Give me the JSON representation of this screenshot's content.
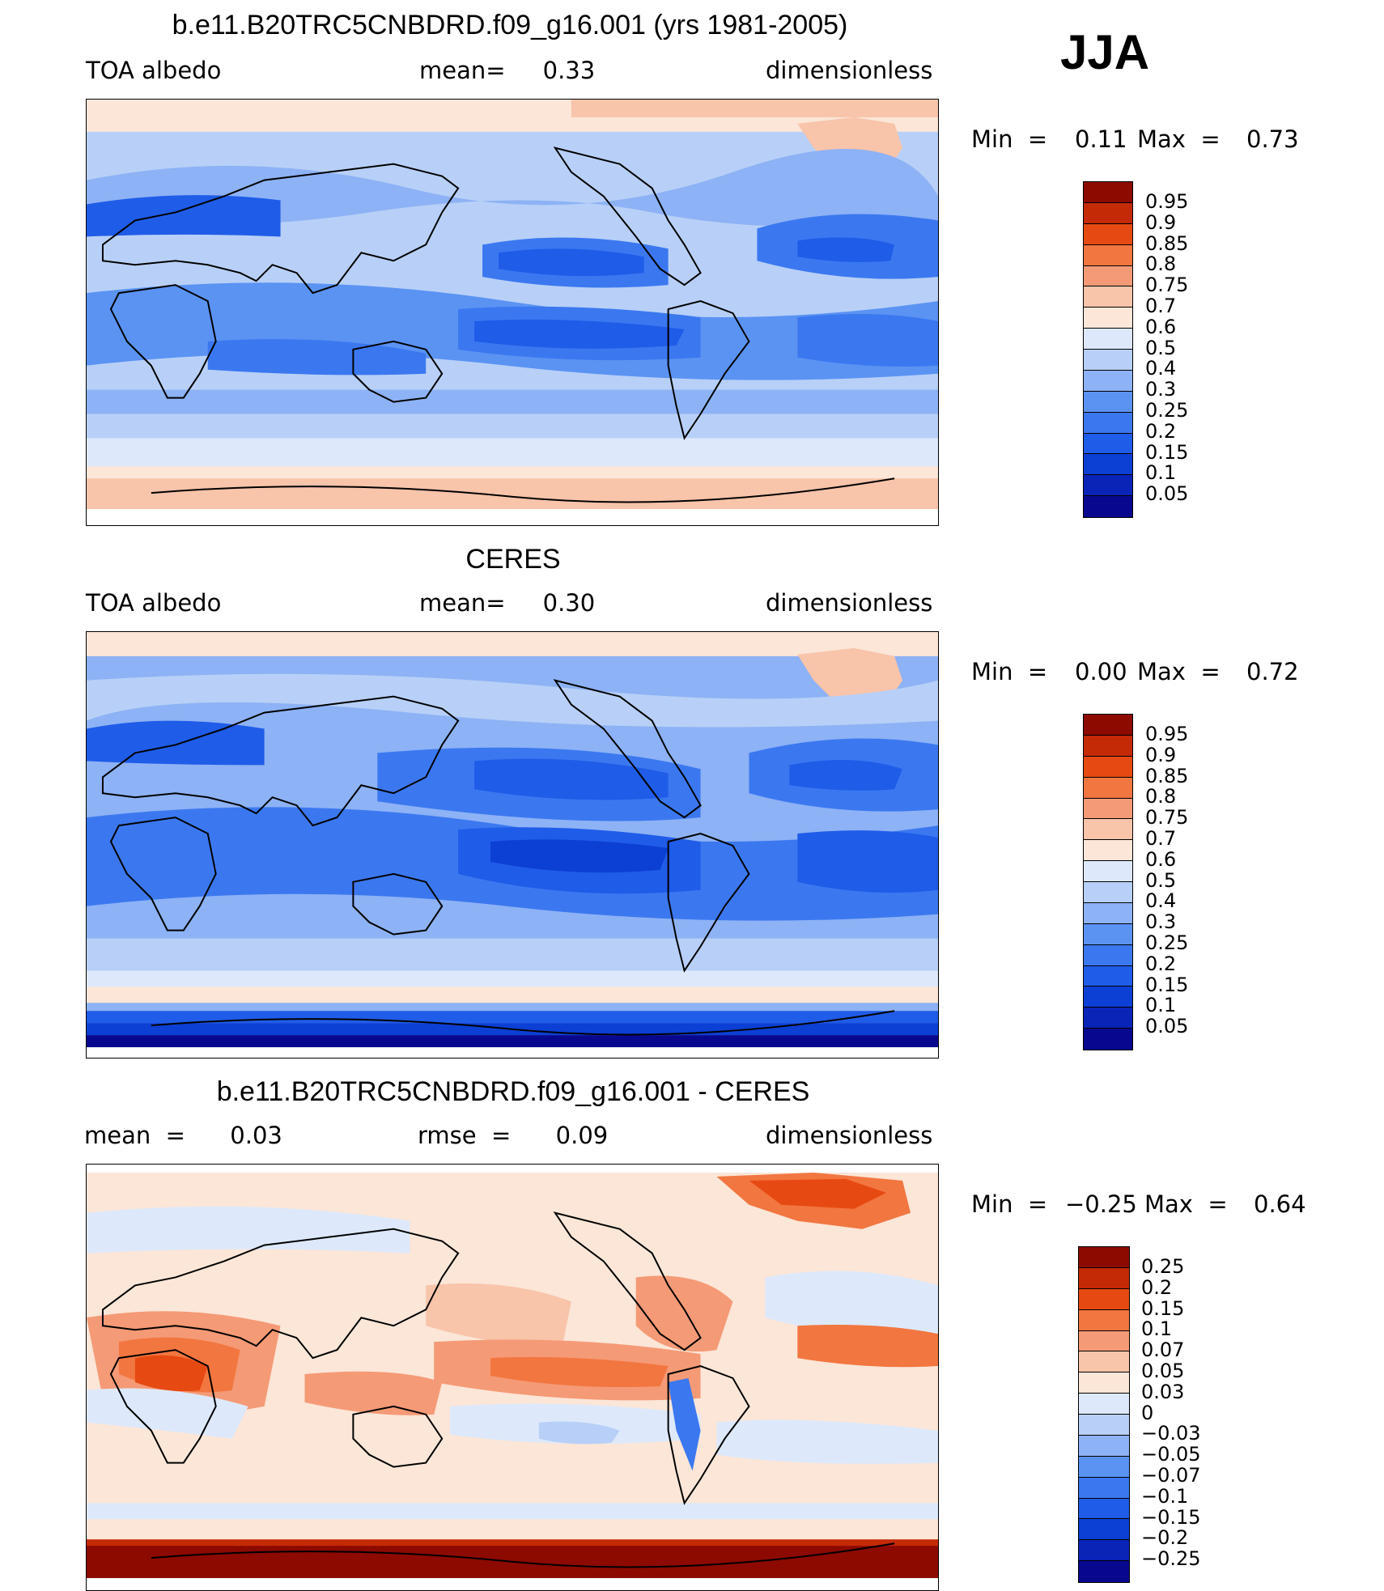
{
  "season": "JJA",
  "colors": {
    "albedo_scale": [
      "#08088f",
      "#0a24b8",
      "#0c3fd4",
      "#1f5ce8",
      "#3b78f0",
      "#5b93f3",
      "#8db2f5",
      "#b8d0f7",
      "#dde9fb",
      "#fbe6d8",
      "#f8c4aa",
      "#f59a76",
      "#f27640",
      "#e64a12",
      "#c42a06",
      "#8c0a00"
    ],
    "diff_scale": [
      "#08088f",
      "#0a24b8",
      "#0c3fd4",
      "#1f5ce8",
      "#3b78f0",
      "#5b93f3",
      "#8db2f5",
      "#b8d0f7",
      "#dde9fb",
      "#fbe6d8",
      "#f8c4aa",
      "#f59a76",
      "#f27640",
      "#e64a12",
      "#c42a06",
      "#8c0a00"
    ]
  },
  "panels": [
    {
      "title": "b.e11.B20TRC5CNBDRD.f09_g16.001 (yrs 1981-2005)",
      "left": "TOA  albedo",
      "center": "mean=     0.33",
      "right": "dimensionless",
      "min_label": "Min  =",
      "min_value": "0.11",
      "max_label": "Max  =",
      "max_value": "0.73",
      "colorbar_labels": [
        "0.95",
        "0.9",
        "0.85",
        "0.8",
        "0.75",
        "0.7",
        "0.6",
        "0.5",
        "0.4",
        "0.3",
        "0.25",
        "0.2",
        "0.15",
        "0.1",
        "0.05"
      ],
      "field": "model"
    },
    {
      "title": "CERES",
      "left": "TOA  albedo",
      "center": "mean=     0.30",
      "right": "dimensionless",
      "min_label": "Min  =",
      "min_value": "0.00",
      "max_label": "Max  =",
      "max_value": "0.72",
      "colorbar_labels": [
        "0.95",
        "0.9",
        "0.85",
        "0.8",
        "0.75",
        "0.7",
        "0.6",
        "0.5",
        "0.4",
        "0.3",
        "0.25",
        "0.2",
        "0.15",
        "0.1",
        "0.05"
      ],
      "field": "obs"
    },
    {
      "title": "b.e11.B20TRC5CNBDRD.f09_g16.001 - CERES",
      "left": "mean  =      0.03",
      "center": "rmse  =      0.09",
      "right": "dimensionless",
      "min_label": "Min  =",
      "min_value": "−0.25",
      "max_label": "Max  =",
      "max_value": "0.64",
      "colorbar_labels": [
        "0.25",
        "0.2",
        "0.15",
        "0.1",
        "0.07",
        "0.05",
        "0.03",
        "0",
        "−0.03",
        "−0.05",
        "−0.07",
        "−0.1",
        "−0.15",
        "−0.2",
        "−0.25"
      ],
      "field": "diff"
    }
  ]
}
